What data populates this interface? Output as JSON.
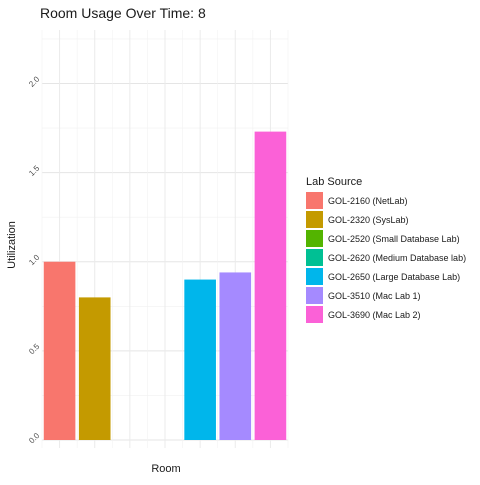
{
  "chart_data": {
    "type": "bar",
    "title": "Room Usage Over Time: 8",
    "xlabel": "Room",
    "ylabel": "Utilization",
    "ylim": [
      0,
      2.3
    ],
    "y_ticks": [
      0.0,
      0.5,
      1.0,
      1.5,
      2.0
    ],
    "y_tick_labels": [
      "0.0",
      "0.5",
      "1.0",
      "1.5",
      "2.0"
    ],
    "grid": true,
    "legend_position": "right",
    "legend_title": "Lab Source",
    "categories": [
      "GOL-2160 (NetLab)",
      "GOL-2320 (SysLab)",
      "GOL-2520 (Small Database Lab)",
      "GOL-2620 (Medium Database lab)",
      "GOL-2650 (Large Database Lab)",
      "GOL-3510 (Mac Lab 1)",
      "GOL-3690 (Mac Lab 2)"
    ],
    "values": [
      1.0,
      0.8,
      0.0,
      0.0,
      0.9,
      0.94,
      1.73
    ],
    "colors": [
      "#F8766D",
      "#C49A00",
      "#53B400",
      "#00C094",
      "#00B6EB",
      "#A58AFF",
      "#FB61D7"
    ]
  }
}
